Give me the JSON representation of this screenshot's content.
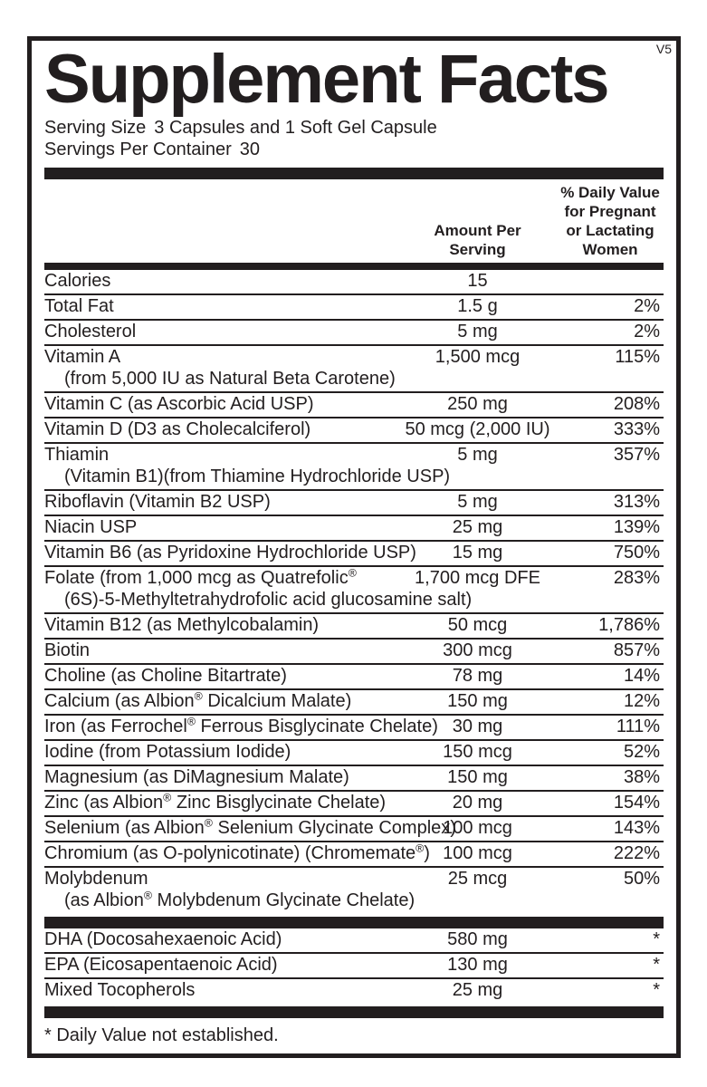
{
  "label": {
    "version": "V5",
    "title": "Supplement Facts",
    "serving_size_label": "Serving Size",
    "serving_size_value": "3 Capsules and 1 Soft Gel Capsule",
    "servings_per_container_label": "Servings Per Container",
    "servings_per_container_value": "30",
    "col_amount_header": "Amount Per\nServing",
    "col_dv_header": "% Daily Value\nfor Pregnant\nor Lactating\nWomen",
    "footnote": "* Daily Value not established."
  },
  "colors": {
    "ink": "#221e1f",
    "paper": "#ffffff"
  },
  "main_rows": [
    {
      "name": "Calories",
      "sub": "",
      "amount": "15",
      "dv": ""
    },
    {
      "name": "Total Fat",
      "sub": "",
      "amount": "1.5 g",
      "dv": "2%"
    },
    {
      "name": "Cholesterol",
      "sub": "",
      "amount": "5 mg",
      "dv": "2%"
    },
    {
      "name": "Vitamin A",
      "sub": "(from 5,000 IU as Natural Beta Carotene)",
      "amount": "1,500 mcg",
      "dv": "115%"
    },
    {
      "name": "Vitamin C (as Ascorbic Acid USP)",
      "sub": "",
      "amount": "250 mg",
      "dv": "208%"
    },
    {
      "name": "Vitamin D (D3 as Cholecalciferol)",
      "sub": "",
      "amount": "50 mcg (2,000 IU)",
      "dv": "333%"
    },
    {
      "name": "Thiamin",
      "sub": "(Vitamin B1)(from Thiamine Hydrochloride USP)",
      "amount": "5 mg",
      "dv": "357%"
    },
    {
      "name": "Riboflavin (Vitamin B2 USP)",
      "sub": "",
      "amount": "5 mg",
      "dv": "313%"
    },
    {
      "name": "Niacin USP",
      "sub": "",
      "amount": "25 mg",
      "dv": "139%"
    },
    {
      "name": "Vitamin B6 (as Pyridoxine Hydrochloride USP)",
      "sub": "",
      "amount": "15 mg",
      "dv": "750%"
    },
    {
      "name": "Folate (from 1,000 mcg as Quatrefolic®",
      "sub": "(6S)-5-Methyltetrahydrofolic acid glucosamine salt)",
      "amount": "1,700 mcg DFE",
      "dv": "283%"
    },
    {
      "name": "Vitamin B12 (as Methylcobalamin)",
      "sub": "",
      "amount": "50 mcg",
      "dv": "1,786%"
    },
    {
      "name": "Biotin",
      "sub": "",
      "amount": "300 mcg",
      "dv": "857%"
    },
    {
      "name": "Choline (as Choline Bitartrate)",
      "sub": "",
      "amount": "78 mg",
      "dv": "14%"
    },
    {
      "name": "Calcium (as Albion® Dicalcium Malate)",
      "sub": "",
      "amount": "150 mg",
      "dv": "12%"
    },
    {
      "name": "Iron (as Ferrochel® Ferrous Bisglycinate Chelate)",
      "sub": "",
      "amount": "30 mg",
      "dv": "111%"
    },
    {
      "name": "Iodine (from Potassium Iodide)",
      "sub": "",
      "amount": "150 mcg",
      "dv": "52%"
    },
    {
      "name": "Magnesium (as DiMagnesium Malate)",
      "sub": "",
      "amount": "150 mg",
      "dv": "38%"
    },
    {
      "name": "Zinc (as Albion® Zinc Bisglycinate Chelate)",
      "sub": "",
      "amount": "20 mg",
      "dv": "154%"
    },
    {
      "name": "Selenium (as Albion® Selenium Glycinate Complex)",
      "sub": "",
      "amount": "100 mcg",
      "dv": "143%"
    },
    {
      "name": "Chromium (as O-polynicotinate) (Chromemate®)",
      "sub": "",
      "amount": "100 mcg",
      "dv": "222%"
    },
    {
      "name": "Molybdenum",
      "sub": "(as Albion® Molybdenum Glycinate Chelate)",
      "amount": "25 mcg",
      "dv": "50%"
    }
  ],
  "other_rows": [
    {
      "name": "DHA (Docosahexaenoic Acid)",
      "sub": "",
      "amount": "580 mg",
      "dv": "*"
    },
    {
      "name": "EPA (Eicosapentaenoic Acid)",
      "sub": "",
      "amount": "130 mg",
      "dv": "*"
    },
    {
      "name": "Mixed Tocopherols",
      "sub": "",
      "amount": "25 mg",
      "dv": "*"
    }
  ]
}
